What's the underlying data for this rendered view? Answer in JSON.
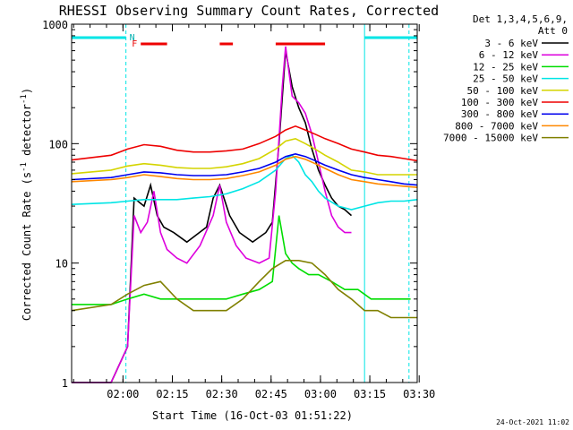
{
  "chart_data": {
    "type": "line",
    "title": "RHESSI Observing Summary Count Rates, Corrected",
    "xlabel": "Start Time (16-Oct-03 01:51:22)",
    "ylabel_main": "Corrected Count Rate (s",
    "ylabel_sup1": "-1",
    "ylabel_mid": " detector",
    "ylabel_sup2": "-1",
    "ylabel_end": ")",
    "y_scale": "log",
    "ylim": [
      1,
      1000
    ],
    "xlim_minutes": [
      -7.0,
      98.0
    ],
    "x_origin": "01:51:22",
    "x_ticks": [
      {
        "label": "02:00",
        "t": 8.6
      },
      {
        "label": "02:15",
        "t": 23.6
      },
      {
        "label": "02:30",
        "t": 38.6
      },
      {
        "label": "02:45",
        "t": 53.6
      },
      {
        "label": "03:00",
        "t": 68.6
      },
      {
        "label": "03:15",
        "t": 83.6
      },
      {
        "label": "03:30",
        "t": 98.6
      }
    ],
    "y_ticks": [
      {
        "label": "1",
        "v": 1
      },
      {
        "label": "10",
        "v": 10
      },
      {
        "label": "100",
        "v": 100
      },
      {
        "label": "1000",
        "v": 1000
      }
    ],
    "legend_header": [
      "Det 1,3,4,5,6,9,",
      "Att 0"
    ],
    "legend_placement": "right",
    "series": [
      {
        "name": "3 - 6 keV",
        "color": "#000000",
        "t": [
          -7,
          5,
          10,
          12,
          15,
          17,
          19,
          21,
          24,
          28,
          34,
          36,
          38,
          41,
          44,
          48,
          52,
          54,
          56,
          58,
          60,
          62,
          64,
          66,
          68,
          70,
          72,
          74,
          76,
          78
        ],
        "v": [
          1,
          1,
          2,
          35,
          30,
          45,
          25,
          20,
          18,
          15,
          20,
          35,
          45,
          25,
          18,
          15,
          18,
          22,
          100,
          600,
          300,
          200,
          150,
          90,
          60,
          45,
          35,
          30,
          28,
          25
        ]
      },
      {
        "name": "6 - 12 keV",
        "color": "#dd00dd",
        "t": [
          -7,
          5,
          10,
          12,
          14,
          16,
          18,
          20,
          22,
          25,
          28,
          32,
          36,
          38,
          40,
          43,
          46,
          50,
          53,
          55,
          57,
          58,
          60,
          62,
          64,
          66,
          68,
          70,
          72,
          74,
          76,
          78
        ],
        "v": [
          1,
          1,
          2,
          25,
          18,
          22,
          40,
          18,
          13,
          11,
          10,
          14,
          25,
          45,
          22,
          14,
          11,
          10,
          11,
          40,
          300,
          650,
          250,
          220,
          180,
          120,
          70,
          40,
          25,
          20,
          18,
          18
        ]
      },
      {
        "name": "12 - 25 keV",
        "color": "#00dd00",
        "t": [
          -7,
          5,
          10,
          15,
          20,
          25,
          30,
          35,
          40,
          45,
          50,
          54,
          56,
          58,
          60,
          62,
          65,
          68,
          72,
          76,
          80,
          84,
          88,
          92,
          96
        ],
        "v": [
          4.5,
          4.5,
          5,
          5.5,
          5,
          5,
          5,
          5,
          5,
          5.5,
          6,
          7,
          25,
          12,
          10,
          9,
          8,
          8,
          7,
          6,
          6,
          5,
          5,
          5,
          5
        ]
      },
      {
        "name": "25 - 50 keV",
        "color": "#00e5e5",
        "t": [
          -7,
          5,
          10,
          15,
          20,
          25,
          30,
          35,
          40,
          45,
          50,
          55,
          58,
          60,
          62,
          64,
          66,
          68,
          70,
          74,
          78,
          82,
          86,
          90,
          94,
          98
        ],
        "v": [
          31,
          32,
          33,
          34,
          34,
          34,
          35,
          36,
          38,
          42,
          48,
          60,
          75,
          80,
          70,
          55,
          48,
          40,
          35,
          30,
          28,
          30,
          32,
          33,
          33,
          34
        ]
      },
      {
        "name": "50 - 100 keV",
        "color": "#d4d400",
        "t": [
          -7,
          5,
          10,
          15,
          20,
          25,
          30,
          35,
          40,
          45,
          50,
          55,
          58,
          61,
          64,
          67,
          70,
          74,
          78,
          82,
          86,
          90,
          94,
          98
        ],
        "v": [
          56,
          60,
          65,
          68,
          66,
          63,
          62,
          62,
          64,
          68,
          75,
          90,
          105,
          110,
          100,
          90,
          80,
          70,
          60,
          58,
          55,
          55,
          55,
          55
        ]
      },
      {
        "name": "100 - 300 keV",
        "color": "#ee0000",
        "t": [
          -7,
          5,
          10,
          15,
          20,
          25,
          30,
          35,
          40,
          45,
          50,
          55,
          58,
          61,
          64,
          67,
          70,
          74,
          78,
          82,
          86,
          90,
          94,
          98
        ],
        "v": [
          73,
          80,
          90,
          98,
          95,
          88,
          85,
          85,
          87,
          90,
          100,
          115,
          130,
          140,
          130,
          120,
          110,
          100,
          90,
          85,
          80,
          78,
          75,
          72
        ]
      },
      {
        "name": "300 - 800 keV",
        "color": "#0000ee",
        "t": [
          -7,
          5,
          10,
          15,
          20,
          25,
          30,
          35,
          40,
          45,
          50,
          55,
          58,
          61,
          64,
          67,
          70,
          74,
          78,
          82,
          86,
          90,
          94,
          98
        ],
        "v": [
          50,
          52,
          55,
          58,
          57,
          55,
          54,
          54,
          55,
          58,
          62,
          70,
          78,
          82,
          78,
          72,
          66,
          60,
          55,
          52,
          50,
          48,
          46,
          45
        ]
      },
      {
        "name": "800 - 7000 keV",
        "color": "#ff8800",
        "t": [
          -7,
          5,
          10,
          15,
          20,
          25,
          30,
          35,
          40,
          45,
          50,
          55,
          58,
          61,
          64,
          67,
          70,
          74,
          78,
          82,
          86,
          90,
          94,
          98
        ],
        "v": [
          48,
          50,
          52,
          55,
          53,
          51,
          50,
          50,
          51,
          54,
          58,
          66,
          74,
          78,
          74,
          68,
          62,
          55,
          50,
          48,
          46,
          45,
          44,
          43
        ]
      },
      {
        "name": "7000 - 15000 keV",
        "color": "#808000",
        "t": [
          -7,
          5,
          10,
          15,
          20,
          25,
          30,
          35,
          40,
          45,
          50,
          54,
          58,
          62,
          66,
          70,
          74,
          78,
          82,
          86,
          90,
          94,
          98
        ],
        "v": [
          4,
          4.5,
          5.5,
          6.5,
          7,
          5,
          4,
          4,
          4,
          5,
          7,
          9,
          10.5,
          10.5,
          10,
          8,
          6,
          5,
          4,
          4,
          3.5,
          3.5,
          3.5
        ]
      }
    ],
    "annotations": {
      "flags_label_F": "F",
      "flags_label_N": "N",
      "flare_intervals": [
        [
          14,
          22
        ],
        [
          38,
          42
        ],
        [
          55,
          70
        ]
      ],
      "night_intervals": [
        [
          -7,
          9.5
        ],
        [
          82,
          98
        ]
      ],
      "dashed_times": [
        9.5,
        95.5
      ],
      "solid_times": [
        82
      ]
    },
    "date_stamp": "24-Oct-2021 11:02"
  }
}
